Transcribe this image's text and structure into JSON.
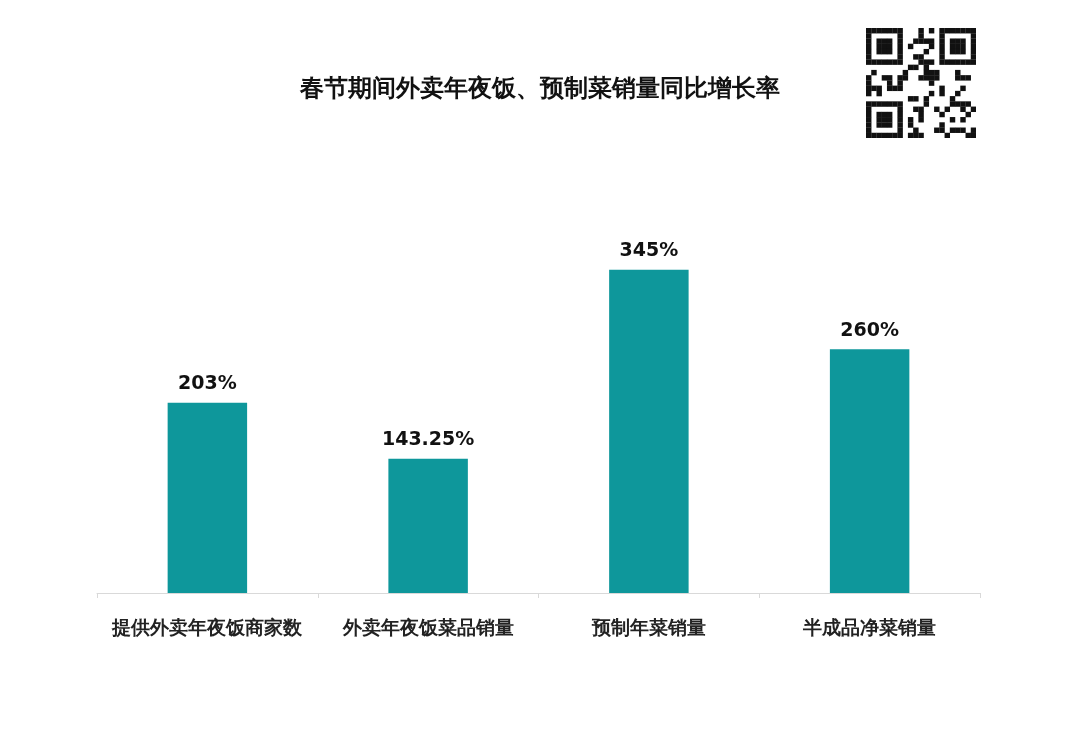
{
  "chart_data": {
    "type": "bar",
    "title": "春节期间外卖年夜饭、预制菜销量同比增长率",
    "categories": [
      "提供外卖年夜饭商家数",
      "外卖年夜饭菜品销量",
      "预制年菜销量",
      "半成品净菜销量"
    ],
    "values": [
      203,
      143.25,
      345,
      260
    ],
    "color": "#0e979b",
    "value_labels": [
      "203%",
      "143.25%",
      "345%",
      "260%"
    ],
    "tick_labels": "x"
  }
}
